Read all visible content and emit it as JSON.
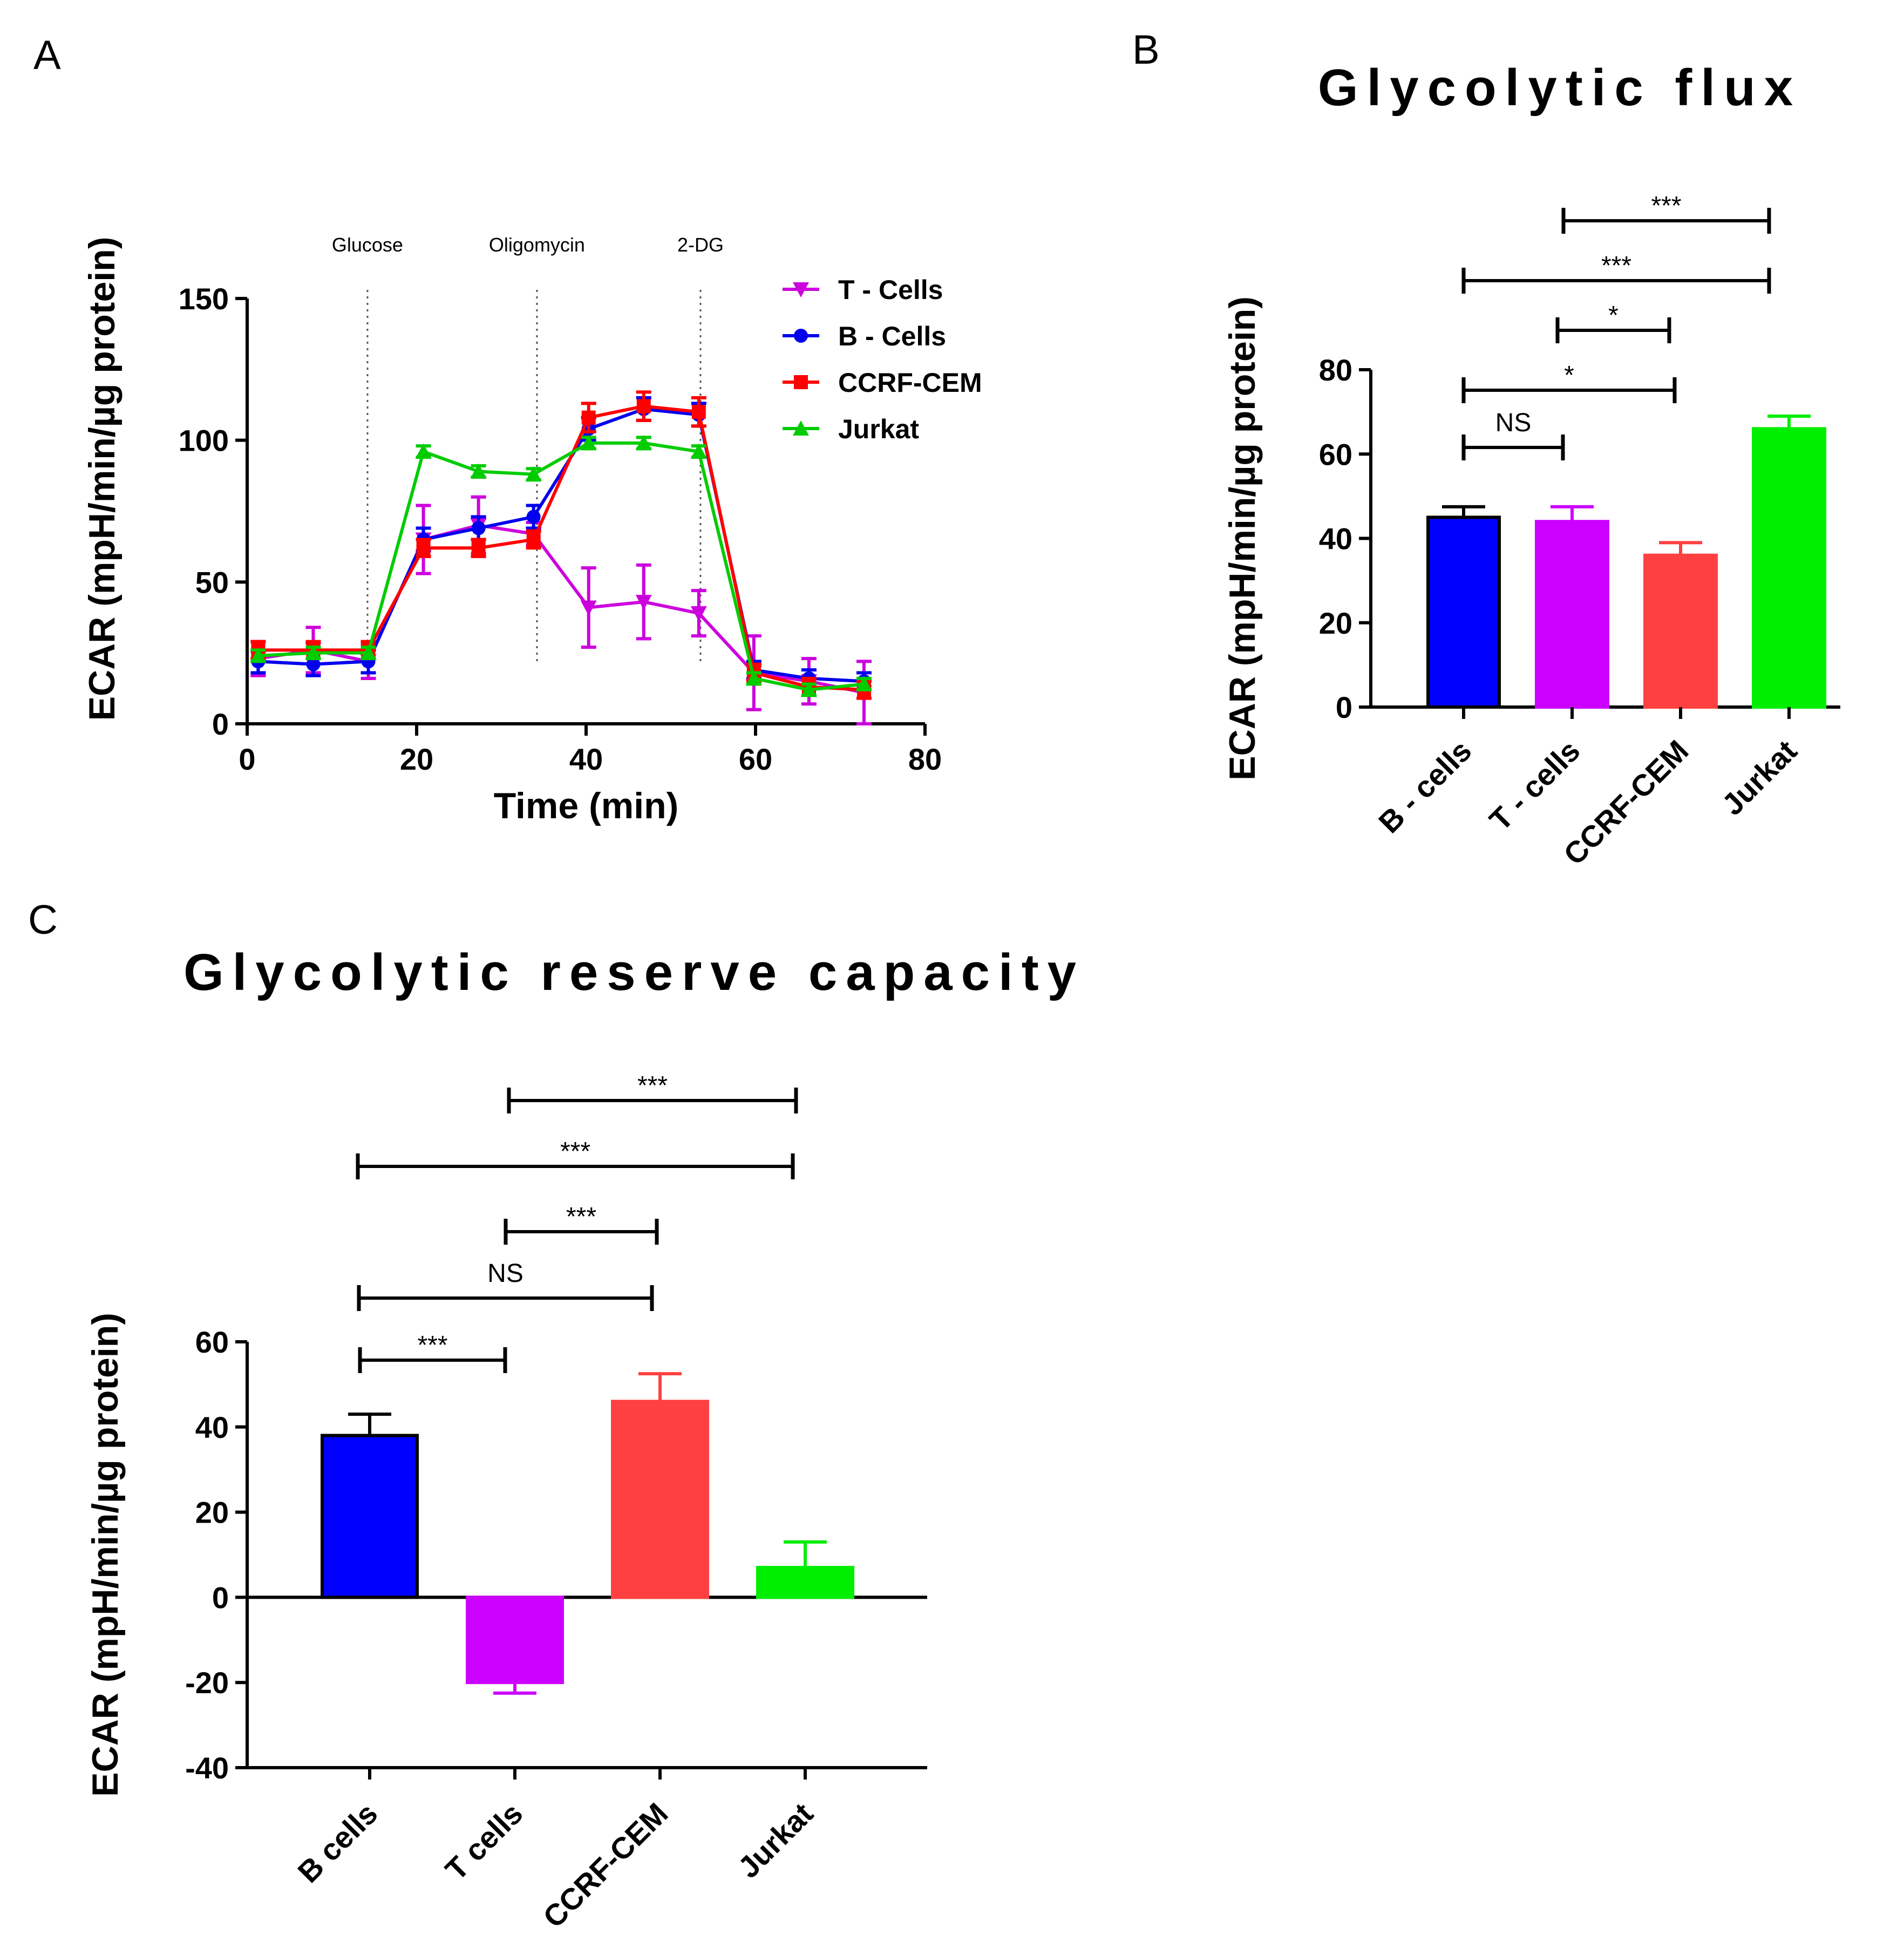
{
  "figure": {
    "panel_labels": [
      "A",
      "B",
      "C"
    ]
  },
  "chart_data": [
    {
      "panel": "A",
      "type": "line",
      "title": "",
      "xlabel": "Time (min)",
      "ylabel": "ECAR (mpH/min/µg protein)",
      "xlim": [
        0,
        80
      ],
      "ylim": [
        0,
        150
      ],
      "xticks": [
        0,
        20,
        40,
        60,
        80
      ],
      "yticks": [
        0,
        50,
        100,
        150
      ],
      "x": [
        1.3,
        7.8,
        14.3,
        20.8,
        27.3,
        33.8,
        40.3,
        46.8,
        53.3,
        59.8,
        66.3,
        72.8
      ],
      "injections": [
        {
          "label": "Glucose",
          "x": 14.2
        },
        {
          "label": "Oligomycin",
          "x": 34.2
        },
        {
          "label": "2-DG",
          "x": 53.5
        }
      ],
      "legend_position": "top-right",
      "series": [
        {
          "name": "T - Cells",
          "color": "#cc00dd",
          "marker": "triangle-down",
          "values": [
            23,
            26,
            22,
            65,
            70,
            67,
            41,
            43,
            39,
            18,
            15,
            11
          ],
          "errors": [
            6,
            8,
            6,
            12,
            10,
            4,
            14,
            13,
            8,
            13,
            8,
            11
          ]
        },
        {
          "name": "B - Cells",
          "color": "#0000ee",
          "marker": "circle",
          "values": [
            22,
            21,
            22,
            65,
            69,
            73,
            104,
            111,
            109,
            19,
            16,
            15
          ],
          "errors": [
            4,
            4,
            4,
            4,
            4,
            4,
            4,
            4,
            4,
            3,
            3,
            3
          ]
        },
        {
          "name": "CCRF-CEM",
          "color": "#ff0000",
          "marker": "square",
          "values": [
            26,
            26,
            26,
            62,
            62,
            65,
            108,
            112,
            110,
            18,
            13,
            12
          ],
          "errors": [
            3,
            3,
            3,
            3,
            3,
            3,
            5,
            5,
            5,
            3,
            3,
            3
          ]
        },
        {
          "name": "Jurkat",
          "color": "#00cc00",
          "marker": "triangle-up",
          "values": [
            24,
            25,
            25,
            96,
            89,
            88,
            99,
            99,
            96,
            16,
            12,
            14
          ],
          "errors": [
            2,
            2,
            2,
            2,
            2,
            2,
            2,
            2,
            2,
            2,
            2,
            2
          ]
        }
      ]
    },
    {
      "panel": "B",
      "type": "bar",
      "title": "Glycolytic flux",
      "xlabel": "",
      "ylabel": "ECAR (mpH/min/µg protein)",
      "ylim": [
        0,
        80
      ],
      "yticks": [
        0,
        20,
        40,
        60,
        80
      ],
      "categories": [
        "B - cells",
        "T - cells",
        "CCRF-CEM",
        "Jurkat"
      ],
      "values": [
        45,
        44,
        36,
        66
      ],
      "errors": [
        2.5,
        3.5,
        3,
        3
      ],
      "colors": [
        "#0000ff",
        "#cc00ff",
        "#ff4040",
        "#00ee00"
      ],
      "edges": [
        "#000000",
        "#cc00ff",
        "#ff4040",
        "#00ee00"
      ],
      "comparisons": [
        {
          "from": 0,
          "to": 1,
          "label": "NS"
        },
        {
          "from": 0,
          "to": 2,
          "label": "*"
        },
        {
          "from": 1,
          "to": 2,
          "label": "*"
        },
        {
          "from": 0,
          "to": 3,
          "label": "***"
        },
        {
          "from": 1,
          "to": 3,
          "label": "***"
        }
      ]
    },
    {
      "panel": "C",
      "type": "bar",
      "title": "Glycolytic reserve capacity",
      "xlabel": "",
      "ylabel": "ECAR (mpH/min/µg protein)",
      "ylim": [
        -40,
        60
      ],
      "yticks": [
        -40,
        -20,
        0,
        20,
        40,
        60
      ],
      "categories": [
        "B cells",
        "T cells",
        "CCRF-CEM",
        "Jurkat"
      ],
      "values": [
        38,
        -20,
        46,
        7
      ],
      "errors": [
        5,
        2.5,
        6.5,
        6
      ],
      "colors": [
        "#0000ff",
        "#cc00ff",
        "#ff4040",
        "#00ee00"
      ],
      "edges": [
        "#000000",
        "#cc00ff",
        "#ff4040",
        "#00ee00"
      ],
      "comparisons": [
        {
          "from": 0,
          "to": 1,
          "label": "***"
        },
        {
          "from": 0,
          "to": 2,
          "label": "NS"
        },
        {
          "from": 1,
          "to": 2,
          "label": "***"
        },
        {
          "from": 0,
          "to": 3,
          "label": "***"
        },
        {
          "from": 1,
          "to": 3,
          "label": "***"
        }
      ]
    }
  ]
}
